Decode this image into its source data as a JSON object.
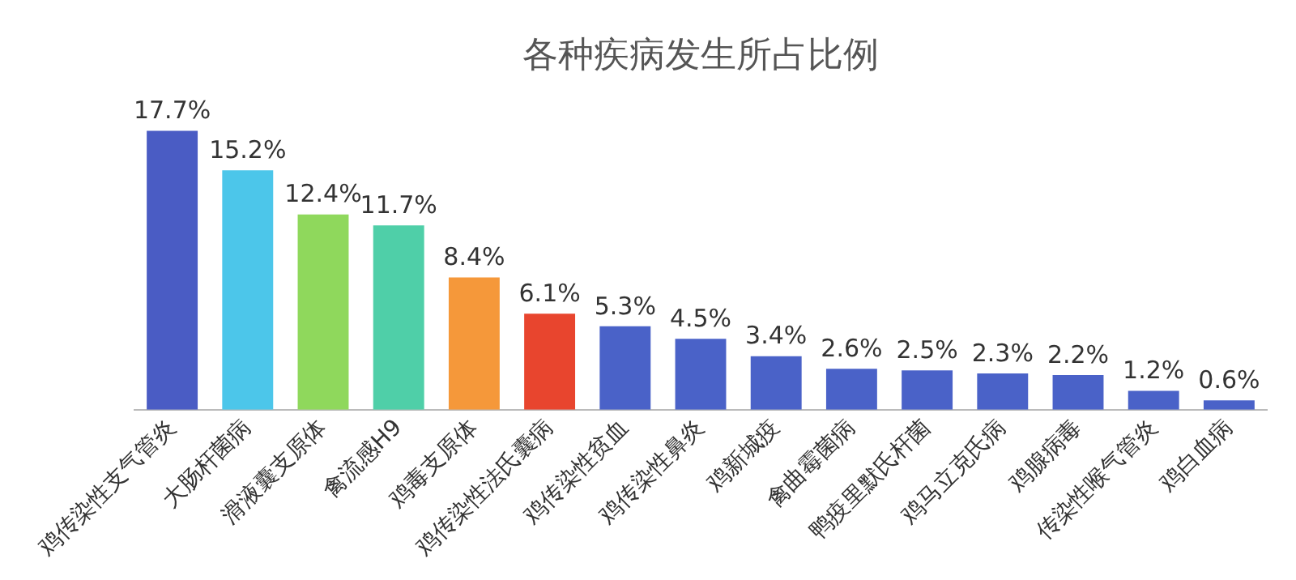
{
  "chart_data": {
    "type": "bar",
    "title": "各种疾病发生所占比例",
    "categories": [
      "鸡传染性支气管炎",
      "大肠杆菌病",
      "滑液囊支原体",
      "禽流感H9",
      "鸡毒支原体",
      "鸡传染性法氏囊病",
      "鸡传染性贫血",
      "鸡传染性鼻炎",
      "鸡新城疫",
      "禽曲霉菌病",
      "鸭疫里默氏杆菌",
      "鸡马立克氏病",
      "鸡腺病毒",
      "传染性喉气管炎",
      "鸡白血病"
    ],
    "values": [
      17.7,
      15.2,
      12.4,
      11.7,
      8.4,
      6.1,
      5.3,
      4.5,
      3.4,
      2.6,
      2.5,
      2.3,
      2.2,
      1.2,
      0.6
    ],
    "value_labels": [
      "17.7%",
      "15.2%",
      "12.4%",
      "11.7%",
      "8.4%",
      "6.1%",
      "5.3%",
      "4.5%",
      "3.4%",
      "2.6%",
      "2.5%",
      "2.3%",
      "2.2%",
      "1.2%",
      "0.6%"
    ],
    "colors": [
      "#4a5cc4",
      "#4cc6ea",
      "#8fd85c",
      "#4fcfa8",
      "#f5983a",
      "#e8452e",
      "#4a62c8",
      "#4a62c8",
      "#4a62c8",
      "#4a62c8",
      "#4a62c8",
      "#4a62c8",
      "#4a62c8",
      "#4a62c8",
      "#4a62c8"
    ],
    "grid": false,
    "legend": false,
    "tick_labels": "x"
  }
}
